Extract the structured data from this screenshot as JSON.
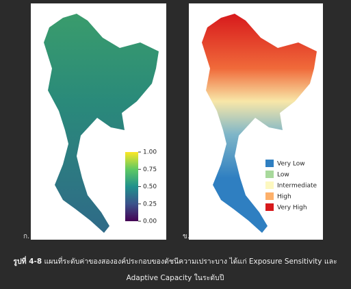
{
  "left_map": {
    "label": "ก.",
    "colorbar": {
      "lim": [
        0,
        1
      ],
      "ticks": [
        {
          "value": 0,
          "label": "0.00"
        },
        {
          "value": 0.25,
          "label": "0.25"
        },
        {
          "value": 0.5,
          "label": "0.50"
        },
        {
          "value": 0.75,
          "label": "0.75"
        },
        {
          "value": 1,
          "label": "1.00"
        }
      ]
    }
  },
  "right_map": {
    "label": "ข.",
    "legend": [
      {
        "name": "Very Low",
        "color": "#2f7fc1"
      },
      {
        "name": "Low",
        "color": "#a8d99c"
      },
      {
        "name": "Intermediate",
        "color": "#fdf8c0"
      },
      {
        "name": "High",
        "color": "#fdb06a"
      },
      {
        "name": "Very High",
        "color": "#d7191c"
      }
    ]
  },
  "caption": {
    "number": "รูปที่ 4-8",
    "line1": "แผนที่ระดับค่าของสององค์ประกอบของดัชนีความเปราะบาง ได้แก่ Exposure Sensitivity และ",
    "line2": "Adaptive Capacity ในระดับปี"
  }
}
